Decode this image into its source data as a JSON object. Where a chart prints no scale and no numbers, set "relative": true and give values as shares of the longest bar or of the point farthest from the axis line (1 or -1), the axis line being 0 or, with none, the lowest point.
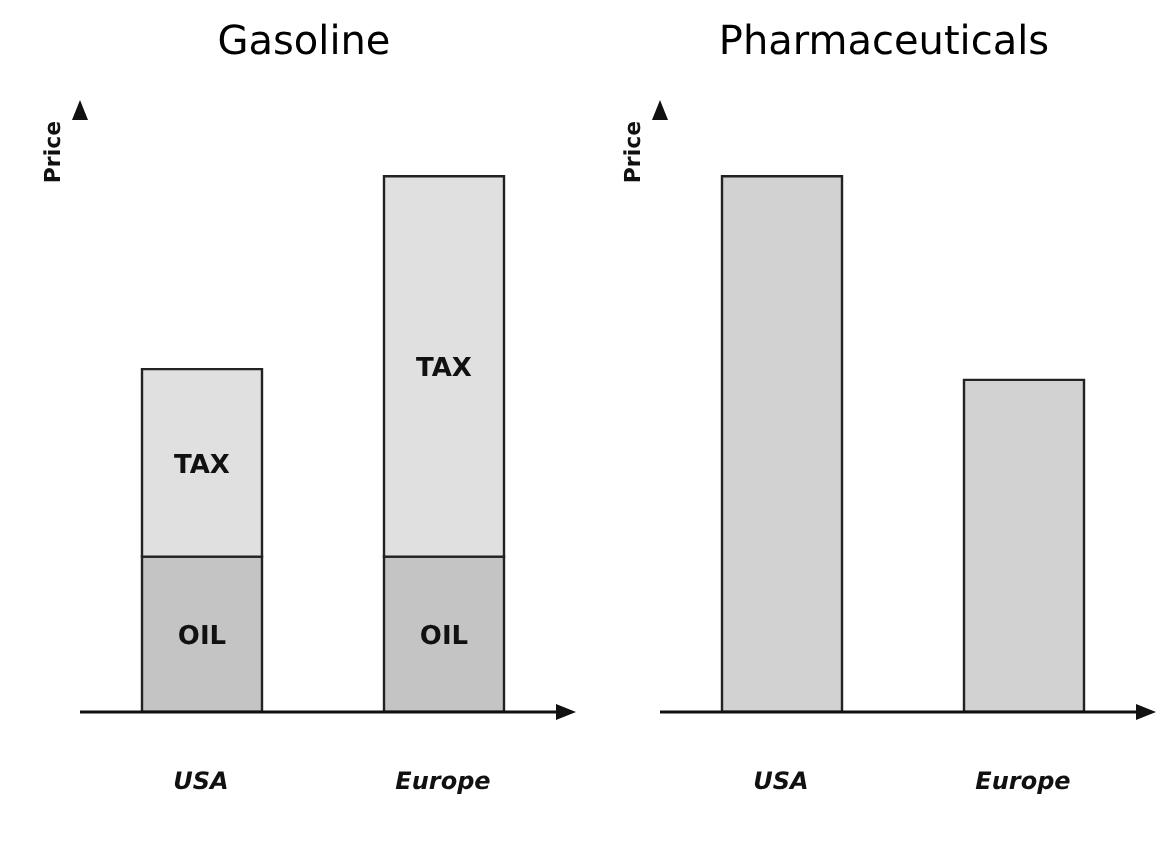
{
  "chart_data": [
    {
      "type": "bar",
      "title": "Gasoline",
      "ylabel": "Price",
      "categories": [
        "USA",
        "Europe"
      ],
      "relative": true,
      "stacked": true,
      "series": [
        {
          "name": "OIL",
          "color": "#c4c4c4",
          "values": [
            0.29,
            0.29
          ]
        },
        {
          "name": "TAX",
          "color": "#e0e0e0",
          "values": [
            0.35,
            0.71
          ]
        }
      ]
    },
    {
      "type": "bar",
      "title": "Pharmaceuticals",
      "ylabel": "Price",
      "categories": [
        "USA",
        "Europe"
      ],
      "relative": true,
      "series": [
        {
          "color": "#d2d2d2",
          "values": [
            1,
            0.62
          ]
        }
      ]
    }
  ]
}
